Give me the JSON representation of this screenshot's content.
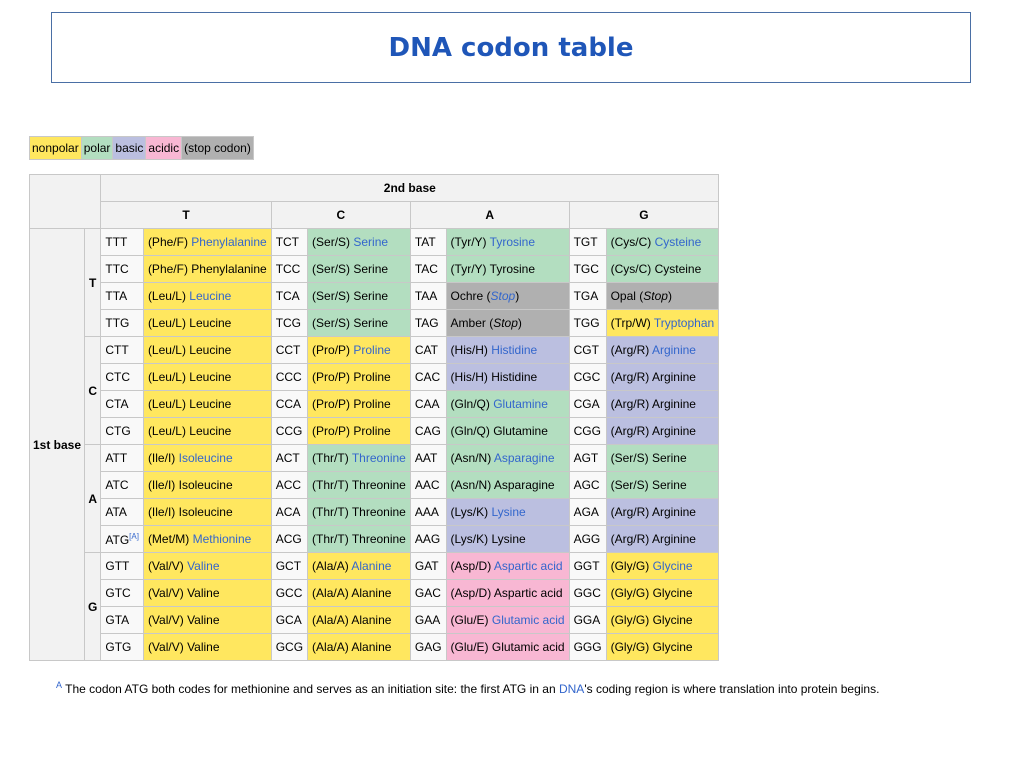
{
  "title": "DNA codon table",
  "legend": [
    {
      "label": "nonpolar",
      "class": "np"
    },
    {
      "label": "polar",
      "class": "po"
    },
    {
      "label": "basic",
      "class": "ba"
    },
    {
      "label": "acidic",
      "class": "ac"
    },
    {
      "label": "(stop codon)",
      "class": "st"
    }
  ],
  "headers": {
    "second_base": "2nd base",
    "first_base": "1st base",
    "columns": [
      "T",
      "C",
      "A",
      "G"
    ]
  },
  "colors": {
    "nonpolar": "#ffe75f",
    "polar": "#b3dec0",
    "basic": "#bbbfe0",
    "acidic": "#f8b7d3",
    "stop": "#b0b0b0",
    "link": "#3366cc",
    "title": "#1f56b8"
  },
  "groups": [
    {
      "base": "T",
      "rows": [
        [
          {
            "c": "TTT",
            "a": "(Phe/F) ",
            "n": "Phenylalanine",
            "t": "np",
            "l": true
          },
          {
            "c": "TCT",
            "a": "(Ser/S) ",
            "n": "Serine",
            "t": "po",
            "l": true
          },
          {
            "c": "TAT",
            "a": "(Tyr/Y) ",
            "n": "Tyrosine",
            "t": "po",
            "l": true
          },
          {
            "c": "TGT",
            "a": "(Cys/C) ",
            "n": "Cysteine",
            "t": "po",
            "l": true
          }
        ],
        [
          {
            "c": "TTC",
            "a": "(Phe/F) ",
            "n": "Phenylalanine",
            "t": "np"
          },
          {
            "c": "TCC",
            "a": "(Ser/S) ",
            "n": "Serine",
            "t": "po"
          },
          {
            "c": "TAC",
            "a": "(Tyr/Y) ",
            "n": "Tyrosine",
            "t": "po"
          },
          {
            "c": "TGC",
            "a": "(Cys/C) ",
            "n": "Cysteine",
            "t": "po"
          }
        ],
        [
          {
            "c": "TTA",
            "a": "(Leu/L) ",
            "n": "Leucine",
            "t": "np",
            "l": true
          },
          {
            "c": "TCA",
            "a": "(Ser/S) ",
            "n": "Serine",
            "t": "po"
          },
          {
            "c": "TAA",
            "a": "Ochre (",
            "n": "Stop",
            "z": ")",
            "t": "st",
            "l": true,
            "i": true
          },
          {
            "c": "TGA",
            "a": "Opal (",
            "n": "Stop",
            "z": ")",
            "t": "st",
            "i": true
          }
        ],
        [
          {
            "c": "TTG",
            "a": "(Leu/L) ",
            "n": "Leucine",
            "t": "np"
          },
          {
            "c": "TCG",
            "a": "(Ser/S) ",
            "n": "Serine",
            "t": "po"
          },
          {
            "c": "TAG",
            "a": "Amber (",
            "n": "Stop",
            "z": ")",
            "t": "st",
            "i": true
          },
          {
            "c": "TGG",
            "a": "(Trp/W) ",
            "n": "Tryptophan",
            "t": "np",
            "l": true
          }
        ]
      ]
    },
    {
      "base": "C",
      "rows": [
        [
          {
            "c": "CTT",
            "a": "(Leu/L) ",
            "n": "Leucine",
            "t": "np"
          },
          {
            "c": "CCT",
            "a": "(Pro/P) ",
            "n": "Proline",
            "t": "np",
            "l": true
          },
          {
            "c": "CAT",
            "a": "(His/H) ",
            "n": "Histidine",
            "t": "ba",
            "l": true
          },
          {
            "c": "CGT",
            "a": "(Arg/R) ",
            "n": "Arginine",
            "t": "ba",
            "l": true
          }
        ],
        [
          {
            "c": "CTC",
            "a": "(Leu/L) ",
            "n": "Leucine",
            "t": "np"
          },
          {
            "c": "CCC",
            "a": "(Pro/P) ",
            "n": "Proline",
            "t": "np"
          },
          {
            "c": "CAC",
            "a": "(His/H) ",
            "n": "Histidine",
            "t": "ba"
          },
          {
            "c": "CGC",
            "a": "(Arg/R) ",
            "n": "Arginine",
            "t": "ba"
          }
        ],
        [
          {
            "c": "CTA",
            "a": "(Leu/L) ",
            "n": "Leucine",
            "t": "np"
          },
          {
            "c": "CCA",
            "a": "(Pro/P) ",
            "n": "Proline",
            "t": "np"
          },
          {
            "c": "CAA",
            "a": "(Gln/Q) ",
            "n": "Glutamine",
            "t": "po",
            "l": true
          },
          {
            "c": "CGA",
            "a": "(Arg/R) ",
            "n": "Arginine",
            "t": "ba"
          }
        ],
        [
          {
            "c": "CTG",
            "a": "(Leu/L) ",
            "n": "Leucine",
            "t": "np"
          },
          {
            "c": "CCG",
            "a": "(Pro/P) ",
            "n": "Proline",
            "t": "np"
          },
          {
            "c": "CAG",
            "a": "(Gln/Q) ",
            "n": "Glutamine",
            "t": "po"
          },
          {
            "c": "CGG",
            "a": "(Arg/R) ",
            "n": "Arginine",
            "t": "ba"
          }
        ]
      ]
    },
    {
      "base": "A",
      "rows": [
        [
          {
            "c": "ATT",
            "a": "(Ile/I) ",
            "n": "Isoleucine",
            "t": "np",
            "l": true
          },
          {
            "c": "ACT",
            "a": "(Thr/T) ",
            "n": "Threonine",
            "t": "po",
            "l": true
          },
          {
            "c": "AAT",
            "a": "(Asn/N) ",
            "n": "Asparagine",
            "t": "po",
            "l": true
          },
          {
            "c": "AGT",
            "a": "(Ser/S) ",
            "n": "Serine",
            "t": "po"
          }
        ],
        [
          {
            "c": "ATC",
            "a": "(Ile/I) ",
            "n": "Isoleucine",
            "t": "np"
          },
          {
            "c": "ACC",
            "a": "(Thr/T) ",
            "n": "Threonine",
            "t": "po"
          },
          {
            "c": "AAC",
            "a": "(Asn/N) ",
            "n": "Asparagine",
            "t": "po"
          },
          {
            "c": "AGC",
            "a": "(Ser/S) ",
            "n": "Serine",
            "t": "po"
          }
        ],
        [
          {
            "c": "ATA",
            "a": "(Ile/I) ",
            "n": "Isoleucine",
            "t": "np"
          },
          {
            "c": "ACA",
            "a": "(Thr/T) ",
            "n": "Threonine",
            "t": "po"
          },
          {
            "c": "AAA",
            "a": "(Lys/K) ",
            "n": "Lysine",
            "t": "ba",
            "l": true
          },
          {
            "c": "AGA",
            "a": "(Arg/R) ",
            "n": "Arginine",
            "t": "ba"
          }
        ],
        [
          {
            "c": "ATG",
            "s": "[A]",
            "a": "(Met/M) ",
            "n": "Methionine",
            "t": "np",
            "l": true
          },
          {
            "c": "ACG",
            "a": "(Thr/T) ",
            "n": "Threonine",
            "t": "po"
          },
          {
            "c": "AAG",
            "a": "(Lys/K) ",
            "n": "Lysine",
            "t": "ba"
          },
          {
            "c": "AGG",
            "a": "(Arg/R) ",
            "n": "Arginine",
            "t": "ba"
          }
        ]
      ]
    },
    {
      "base": "G",
      "rows": [
        [
          {
            "c": "GTT",
            "a": "(Val/V) ",
            "n": "Valine",
            "t": "np",
            "l": true
          },
          {
            "c": "GCT",
            "a": "(Ala/A) ",
            "n": "Alanine",
            "t": "np",
            "l": true
          },
          {
            "c": "GAT",
            "a": "(Asp/D) ",
            "n": "Aspartic acid",
            "t": "ac",
            "l": true
          },
          {
            "c": "GGT",
            "a": "(Gly/G) ",
            "n": "Glycine",
            "t": "np",
            "l": true
          }
        ],
        [
          {
            "c": "GTC",
            "a": "(Val/V) ",
            "n": "Valine",
            "t": "np"
          },
          {
            "c": "GCC",
            "a": "(Ala/A) ",
            "n": "Alanine",
            "t": "np"
          },
          {
            "c": "GAC",
            "a": "(Asp/D) ",
            "n": "Aspartic acid",
            "t": "ac"
          },
          {
            "c": "GGC",
            "a": "(Gly/G) ",
            "n": "Glycine",
            "t": "np"
          }
        ],
        [
          {
            "c": "GTA",
            "a": "(Val/V) ",
            "n": "Valine",
            "t": "np"
          },
          {
            "c": "GCA",
            "a": "(Ala/A) ",
            "n": "Alanine",
            "t": "np"
          },
          {
            "c": "GAA",
            "a": "(Glu/E) ",
            "n": "Glutamic acid",
            "t": "ac",
            "l": true
          },
          {
            "c": "GGA",
            "a": "(Gly/G) ",
            "n": "Glycine",
            "t": "np"
          }
        ],
        [
          {
            "c": "GTG",
            "a": "(Val/V) ",
            "n": "Valine",
            "t": "np"
          },
          {
            "c": "GCG",
            "a": "(Ala/A) ",
            "n": "Alanine",
            "t": "np"
          },
          {
            "c": "GAG",
            "a": "(Glu/E) ",
            "n": "Glutamic acid",
            "t": "ac"
          },
          {
            "c": "GGG",
            "a": "(Gly/G) ",
            "n": "Glycine",
            "t": "np"
          }
        ]
      ]
    }
  ],
  "footnote": {
    "marker": "A",
    "text_before": " The codon ATG both codes for methionine and serves as an initiation site: the first ATG in an ",
    "link": "DNA",
    "text_after": "'s coding region is where translation into protein begins."
  }
}
